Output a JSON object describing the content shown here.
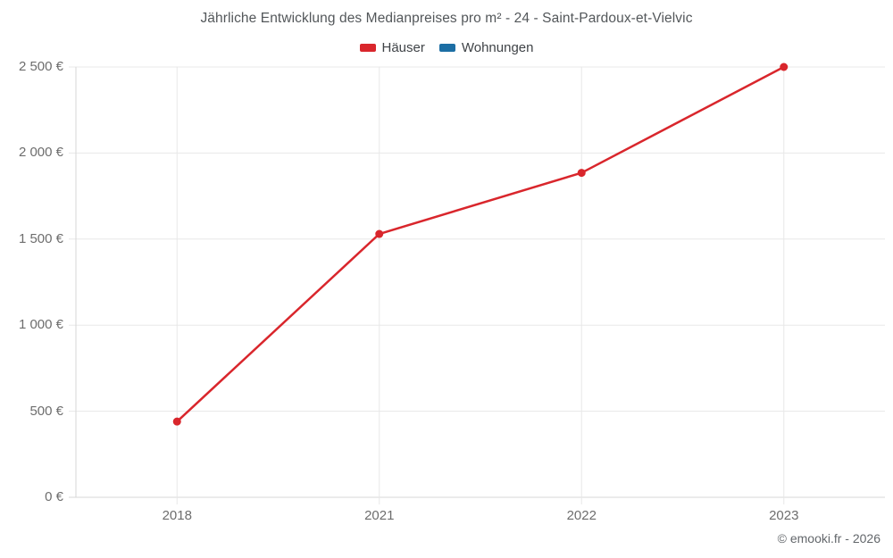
{
  "page": {
    "copyright": "© emooki.fr - 2026"
  },
  "chart_data": {
    "type": "line",
    "title": "Jährliche Entwicklung des Medianpreises pro m² - 24 - Saint-Pardoux-et-Vielvic",
    "categories": [
      "2018",
      "2021",
      "2022",
      "2023"
    ],
    "series": [
      {
        "name": "Häuser",
        "color": "#d9262c",
        "values": [
          440,
          1530,
          1885,
          2500
        ]
      },
      {
        "name": "Wohnungen",
        "color": "#1c6ea4",
        "values": []
      }
    ],
    "xlabel": "",
    "ylabel": "",
    "ylim": [
      0,
      2500
    ],
    "ytick_step": 500,
    "ytick_labels": [
      "0 €",
      "500 €",
      "1 000 €",
      "1 500 €",
      "2 000 €",
      "2 500 €"
    ],
    "grid": true,
    "legend_position": "top",
    "colors": {
      "gridline": "#e8e8e8",
      "axis_line": "#d7d7d7",
      "axis_text": "#6d6d6d",
      "title_text": "#53575a"
    }
  }
}
